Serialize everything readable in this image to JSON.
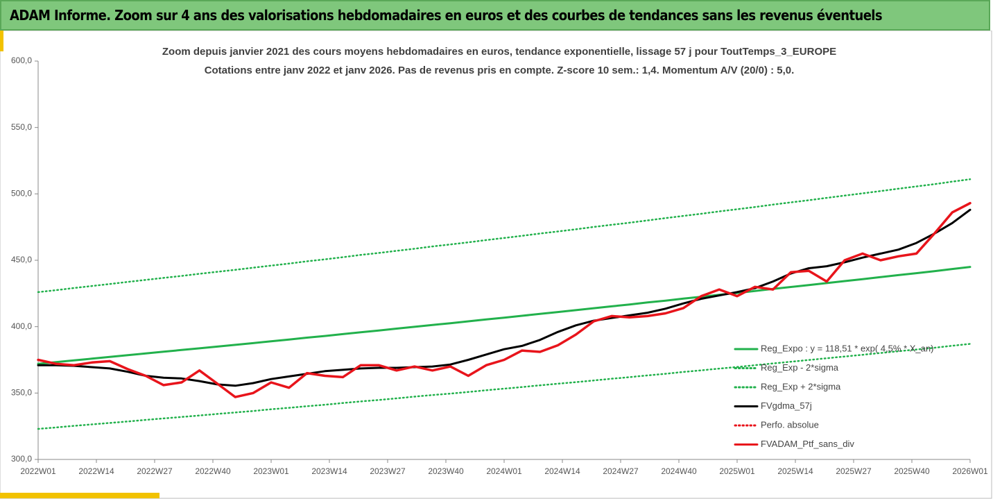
{
  "header": {
    "title": "ADAM Informe. Zoom sur 4 ans des valorisations hebdomadaires en euros et des courbes de tendances sans les revenus éventuels"
  },
  "chart_data": {
    "type": "line",
    "title": "Zoom depuis janvier 2021 des cours moyens hebdomadaires  en euros, tendance exponentielle, lissage 57 j pour ToutTemps_3_EUROPE",
    "subtitle": "Cotations entre janv 2022 et janv 2026. Pas de revenus pris en compte. Z-score 10 sem.: 1,4. Momentum A/V (20/0) : 5,0.",
    "x": [
      0,
      4,
      8,
      12,
      16,
      20,
      24,
      28,
      32,
      36,
      40,
      44,
      48,
      52,
      56,
      60,
      64,
      68,
      72,
      76,
      80,
      84,
      88,
      92,
      96,
      100,
      104,
      108,
      112,
      116,
      120,
      124,
      128,
      132,
      136,
      140,
      144,
      148,
      152,
      156,
      160,
      164,
      168,
      172,
      176,
      180,
      184,
      188,
      192,
      196,
      200,
      204,
      208
    ],
    "xlim": [
      0,
      208
    ],
    "xticks": [
      {
        "value": 0,
        "label": "2022W01"
      },
      {
        "value": 13,
        "label": "2022W14"
      },
      {
        "value": 26,
        "label": "2022W27"
      },
      {
        "value": 39,
        "label": "2022W40"
      },
      {
        "value": 52,
        "label": "2023W01"
      },
      {
        "value": 65,
        "label": "2023W14"
      },
      {
        "value": 78,
        "label": "2023W27"
      },
      {
        "value": 91,
        "label": "2023W40"
      },
      {
        "value": 104,
        "label": "2024W01"
      },
      {
        "value": 117,
        "label": "2024W14"
      },
      {
        "value": 130,
        "label": "2024W27"
      },
      {
        "value": 143,
        "label": "2024W40"
      },
      {
        "value": 156,
        "label": "2025W01"
      },
      {
        "value": 169,
        "label": "2025W14"
      },
      {
        "value": 182,
        "label": "2025W27"
      },
      {
        "value": 195,
        "label": "2025W40"
      },
      {
        "value": 208,
        "label": "2026W01"
      }
    ],
    "ylim": [
      300,
      600
    ],
    "yticks": [
      {
        "value": 300,
        "label": "300,0"
      },
      {
        "value": 350,
        "label": "350,0"
      },
      {
        "value": 400,
        "label": "400,0"
      },
      {
        "value": 450,
        "label": "450,0"
      },
      {
        "value": 500,
        "label": "500,0"
      },
      {
        "value": 550,
        "label": "550,0"
      },
      {
        "value": 600,
        "label": "600,0"
      }
    ],
    "grid": false,
    "legend": "lower right",
    "series": [
      {
        "name": "Reg_Expo : y = 118,51 * exp( 4,5% * X_an)",
        "color": "#22b14c",
        "style": "solid",
        "values": [
          372.0,
          373.3,
          374.6,
          375.9,
          377.2,
          378.5,
          379.8,
          381.1,
          382.4,
          383.7,
          385.0,
          386.3,
          387.6,
          389.0,
          390.3,
          391.7,
          393.0,
          394.4,
          395.8,
          397.1,
          398.5,
          399.9,
          401.3,
          402.6,
          404.0,
          405.4,
          406.8,
          408.2,
          409.6,
          411.0,
          412.4,
          413.9,
          415.3,
          416.7,
          418.2,
          419.6,
          421.1,
          422.5,
          424.0,
          425.4,
          426.9,
          428.4,
          429.9,
          431.3,
          432.8,
          434.3,
          435.8,
          437.3,
          438.8,
          440.3,
          441.8,
          443.4,
          445.0
        ]
      },
      {
        "name": "Reg_Exp - 2*sigma",
        "color": "#22b14c",
        "style": "dotted",
        "values": [
          323.0,
          324.1,
          325.3,
          326.4,
          327.5,
          328.6,
          329.8,
          330.9,
          332.0,
          333.1,
          334.3,
          335.4,
          336.5,
          337.8,
          338.9,
          340.1,
          341.2,
          342.5,
          343.7,
          344.8,
          346.0,
          347.3,
          348.5,
          349.6,
          350.8,
          352.1,
          353.3,
          354.5,
          355.8,
          357.0,
          358.2,
          359.5,
          360.8,
          362.0,
          363.3,
          364.5,
          365.9,
          367.1,
          368.4,
          369.6,
          371.0,
          372.3,
          373.6,
          374.9,
          376.2,
          377.5,
          378.8,
          380.2,
          381.5,
          382.8,
          384.1,
          385.6,
          387.0
        ]
      },
      {
        "name": "Reg_Exp + 2*sigma",
        "color": "#22b14c",
        "style": "dotted",
        "values": [
          426.0,
          427.5,
          429.1,
          430.6,
          432.1,
          433.7,
          435.2,
          436.7,
          438.2,
          439.8,
          441.3,
          442.8,
          444.4,
          446.0,
          447.5,
          449.2,
          450.7,
          452.3,
          454.0,
          455.5,
          457.1,
          458.7,
          460.4,
          461.9,
          463.5,
          465.2,
          466.8,
          468.4,
          470.1,
          471.7,
          473.3,
          475.1,
          476.7,
          478.3,
          480.0,
          481.7,
          483.4,
          485.0,
          486.8,
          488.4,
          490.1,
          491.9,
          493.6,
          495.2,
          497.0,
          498.7,
          500.4,
          502.1,
          503.9,
          505.6,
          507.3,
          509.2,
          511.0
        ]
      },
      {
        "name": "FVgdma_57j",
        "color": "#000000",
        "style": "solid",
        "values": [
          371,
          371,
          370.5,
          369.5,
          368.5,
          366,
          363,
          361.5,
          361,
          359,
          356.5,
          355.5,
          357.5,
          360.5,
          362.5,
          364.5,
          366.5,
          367.5,
          368.5,
          369,
          369,
          369.5,
          370,
          371.5,
          375,
          379,
          383,
          385.5,
          390,
          396,
          401,
          404.5,
          406.5,
          408.5,
          410.5,
          413.5,
          417.5,
          421,
          423.5,
          426,
          429,
          434,
          440,
          444,
          445.5,
          448.5,
          452,
          455,
          458,
          463,
          470,
          478,
          488
        ]
      },
      {
        "name": "Perfo. absolue",
        "color": "#e8141b",
        "style": "dotted",
        "values": [
          375,
          372,
          371,
          373,
          374,
          368,
          363,
          356,
          358,
          367,
          357,
          347,
          350,
          358,
          354,
          365,
          363,
          362,
          371,
          371,
          367,
          370,
          367,
          370,
          363,
          371,
          375,
          382,
          381,
          386,
          394,
          404,
          408,
          407,
          408,
          410,
          414,
          423,
          428,
          423,
          430,
          428,
          441,
          442,
          434,
          450,
          455,
          450,
          453,
          455,
          470,
          486,
          493
        ]
      },
      {
        "name": "FVADAM_Ptf_sans_div",
        "color": "#e8141b",
        "style": "solid",
        "values": [
          375,
          372,
          371,
          373,
          374,
          368,
          363,
          356,
          358,
          367,
          357,
          347,
          350,
          358,
          354,
          365,
          363,
          362,
          371,
          371,
          367,
          370,
          367,
          370,
          363,
          371,
          375,
          382,
          381,
          386,
          394,
          404,
          408,
          407,
          408,
          410,
          414,
          423,
          428,
          423,
          430,
          428,
          441,
          442,
          434,
          450,
          455,
          450,
          453,
          455,
          470,
          486,
          493
        ]
      }
    ]
  }
}
